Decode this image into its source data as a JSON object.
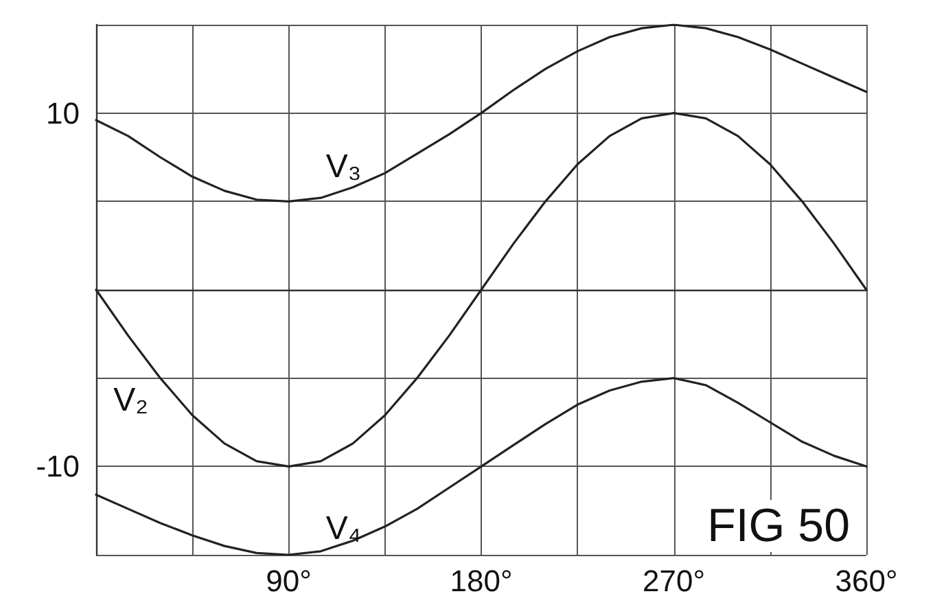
{
  "chart_data": {
    "type": "line",
    "x": [
      0,
      15,
      30,
      45,
      60,
      75,
      90,
      105,
      120,
      135,
      150,
      165,
      180,
      195,
      210,
      225,
      240,
      255,
      270,
      285,
      300,
      315,
      330,
      345,
      360
    ],
    "series": [
      {
        "name": "V₃",
        "color": "#222222",
        "values": [
          9.6,
          8.7,
          7.5,
          6.4,
          5.6,
          5.1,
          5,
          5.2,
          5.8,
          6.6,
          7.7,
          8.8,
          10,
          11.3,
          12.5,
          13.5,
          14.3,
          14.8,
          15,
          14.8,
          14.3,
          13.6,
          12.8,
          12,
          11.2
        ]
      },
      {
        "name": "V₂",
        "color": "#222222",
        "values": [
          0,
          -2.6,
          -5,
          -7.1,
          -8.7,
          -9.7,
          -10,
          -9.7,
          -8.7,
          -7.1,
          -5,
          -2.6,
          0,
          2.6,
          5,
          7.1,
          8.7,
          9.7,
          10,
          9.7,
          8.7,
          7.1,
          5,
          2.6,
          0
        ]
      },
      {
        "name": "V₄",
        "color": "#222222",
        "values": [
          -11.6,
          -12.4,
          -13.2,
          -13.9,
          -14.5,
          -14.9,
          -15,
          -14.8,
          -14.2,
          -13.4,
          -12.4,
          -11.2,
          -10,
          -8.8,
          -7.6,
          -6.5,
          -5.7,
          -5.2,
          -5,
          -5.4,
          -6.4,
          -7.5,
          -8.6,
          -9.4,
          -10
        ]
      }
    ],
    "xlim": [
      0,
      360
    ],
    "xticks": [
      {
        "value": 0,
        "label": null
      },
      {
        "value": 45,
        "label": null
      },
      {
        "value": 90,
        "label": "90°"
      },
      {
        "value": 135,
        "label": null
      },
      {
        "value": 180,
        "label": "180°"
      },
      {
        "value": 225,
        "label": null
      },
      {
        "value": 270,
        "label": "270°"
      },
      {
        "value": 315,
        "label": null
      },
      {
        "value": 360,
        "label": "360°"
      }
    ],
    "ylim": [
      -15,
      15
    ],
    "yticks": [
      {
        "value": -15,
        "label": null
      },
      {
        "value": -10,
        "label": "-10"
      },
      {
        "value": -5,
        "label": null
      },
      {
        "value": 0,
        "label": null
      },
      {
        "value": 5,
        "label": null
      },
      {
        "value": 10,
        "label": "10"
      },
      {
        "value": 15,
        "label": null
      }
    ],
    "grid": true,
    "marker": "none",
    "line_style": "solid",
    "legend": false,
    "annotations": [
      "FIG 50"
    ]
  }
}
